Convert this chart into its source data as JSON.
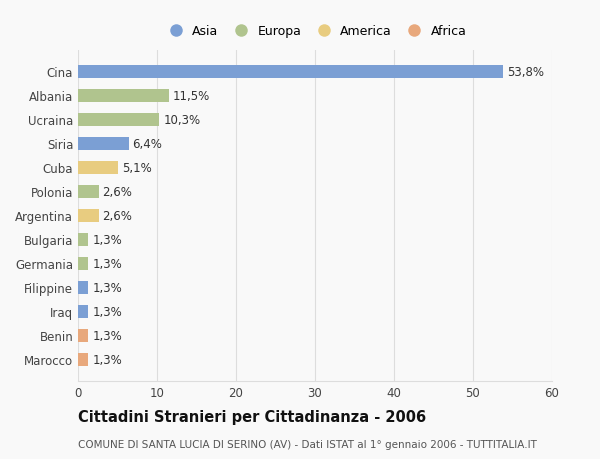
{
  "categories": [
    "Cina",
    "Albania",
    "Ucraina",
    "Siria",
    "Cuba",
    "Polonia",
    "Argentina",
    "Bulgaria",
    "Germania",
    "Filippine",
    "Iraq",
    "Benin",
    "Marocco"
  ],
  "values": [
    53.8,
    11.5,
    10.3,
    6.4,
    5.1,
    2.6,
    2.6,
    1.3,
    1.3,
    1.3,
    1.3,
    1.3,
    1.3
  ],
  "labels": [
    "53,8%",
    "11,5%",
    "10,3%",
    "6,4%",
    "5,1%",
    "2,6%",
    "2,6%",
    "1,3%",
    "1,3%",
    "1,3%",
    "1,3%",
    "1,3%",
    "1,3%"
  ],
  "continents": [
    "Asia",
    "Europa",
    "Europa",
    "Asia",
    "America",
    "Europa",
    "America",
    "Europa",
    "Europa",
    "Asia",
    "Asia",
    "Africa",
    "Africa"
  ],
  "colors": {
    "Asia": "#7b9fd4",
    "Europa": "#b0c48e",
    "America": "#e8cc80",
    "Africa": "#e8a87c"
  },
  "legend_order": [
    "Asia",
    "Europa",
    "America",
    "Africa"
  ],
  "xlim": [
    0,
    60
  ],
  "xticks": [
    0,
    10,
    20,
    30,
    40,
    50,
    60
  ],
  "title": "Cittadini Stranieri per Cittadinanza - 2006",
  "subtitle": "COMUNE DI SANTA LUCIA DI SERINO (AV) - Dati ISTAT al 1° gennaio 2006 - TUTTITALIA.IT",
  "bg_color": "#f9f9f9",
  "grid_color": "#dddddd",
  "bar_height": 0.55,
  "label_fontsize": 8.5,
  "tick_fontsize": 8.5,
  "title_fontsize": 10.5,
  "subtitle_fontsize": 7.5
}
